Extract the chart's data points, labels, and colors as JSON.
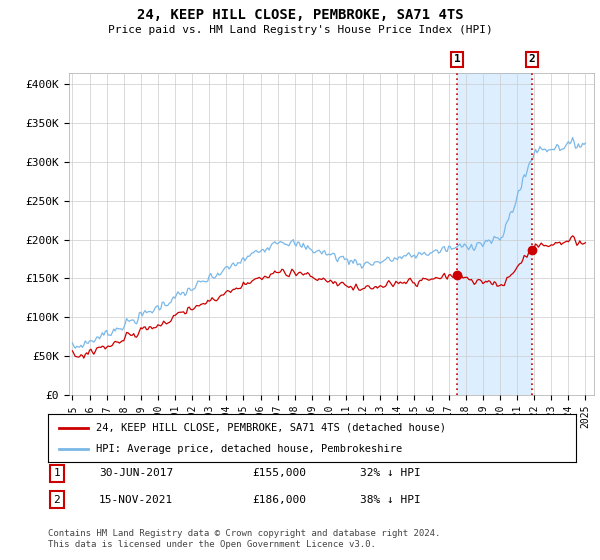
{
  "title": "24, KEEP HILL CLOSE, PEMBROKE, SA71 4TS",
  "subtitle": "Price paid vs. HM Land Registry's House Price Index (HPI)",
  "ylabel_ticks": [
    "£0",
    "£50K",
    "£100K",
    "£150K",
    "£200K",
    "£250K",
    "£300K",
    "£350K",
    "£400K"
  ],
  "ytick_values": [
    0,
    50000,
    100000,
    150000,
    200000,
    250000,
    300000,
    350000,
    400000
  ],
  "ylim": [
    0,
    415000
  ],
  "xlim_start": 1994.8,
  "xlim_end": 2025.5,
  "hpi_color": "#7ab8e8",
  "price_color": "#cc0000",
  "shade_color": "#ddeeff",
  "transaction1_date": 2017.5,
  "transaction1_price": 155000,
  "transaction2_date": 2021.88,
  "transaction2_price": 186000,
  "footer": "Contains HM Land Registry data © Crown copyright and database right 2024.\nThis data is licensed under the Open Government Licence v3.0.",
  "legend_house": "24, KEEP HILL CLOSE, PEMBROKE, SA71 4TS (detached house)",
  "legend_hpi": "HPI: Average price, detached house, Pembrokeshire",
  "table_row1": [
    "1",
    "30-JUN-2017",
    "£155,000",
    "32% ↓ HPI"
  ],
  "table_row2": [
    "2",
    "15-NOV-2021",
    "£186,000",
    "38% ↓ HPI"
  ]
}
